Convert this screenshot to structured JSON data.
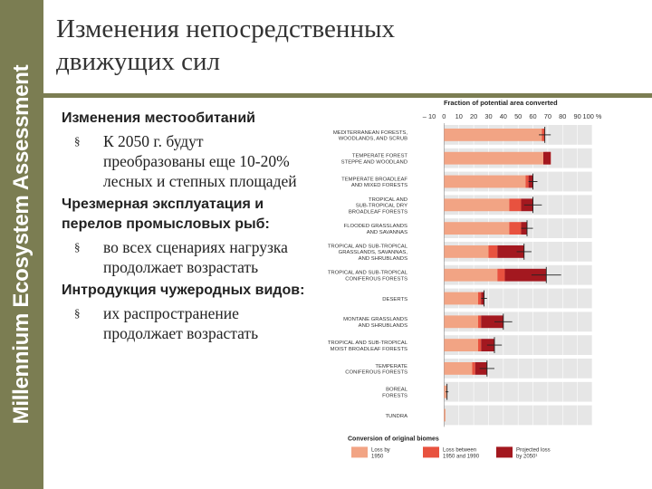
{
  "brand": "Millennium Ecosystem Assessment",
  "title_line1": "Изменения непосредственных",
  "title_line2": "движущих сил",
  "bullets": [
    {
      "head": "Изменения местообитаний",
      "items": [
        "К 2050 г. будут преобразованы еще 10-20% лесных и степных площадей"
      ]
    },
    {
      "head": "Чрезмерная эксплуатация и перелов промысловых рыб:",
      "items": [
        "во всех сценариях нагрузка продолжает возрастать"
      ]
    },
    {
      "head": "Интродукция чужеродных видов:",
      "items": [
        "их распространение продолжает возрастать"
      ]
    }
  ],
  "bullet_marker": "§",
  "colors": {
    "band": "#7b7d52",
    "before1950": "#f2a484",
    "between1950_1990": "#e8523f",
    "projected": "#a3181f",
    "row_bg": "#e6e6e6"
  },
  "chart_data": {
    "type": "bar",
    "title": "Fraction of potential area converted",
    "xlim": [
      -10,
      100
    ],
    "xticks": [
      "– 10",
      "0",
      "10",
      "20",
      "30",
      "40",
      "50",
      "60",
      "70",
      "80",
      "90",
      "100 %"
    ],
    "categories": [
      [
        "MEDITERRANEAN FORESTS,",
        "WOODLANDS, AND SCRUB"
      ],
      [
        "TEMPERATE FOREST",
        "STEPPE AND WOODLAND"
      ],
      [
        "TEMPERATE BROADLEAF",
        "AND MIXED FORESTS"
      ],
      [
        "TROPICAL AND",
        "SUB-TROPICAL DRY",
        "BROADLEAF FORESTS"
      ],
      [
        "FLOODED GRASSLANDS",
        "AND SAVANNAS"
      ],
      [
        "TROPICAL AND SUB-TROPICAL",
        "GRASSLANDS, SAVANNAS,",
        "AND SHRUBLANDS"
      ],
      [
        "TROPICAL AND SUB-TROPICAL",
        "CONIFEROUS FORESTS"
      ],
      [
        "DESERTS"
      ],
      [
        "MONTANE GRASSLANDS",
        "AND SHRUBLANDS"
      ],
      [
        "TROPICAL AND SUB-TROPICAL",
        "MOIST BROADLEAF FORESTS"
      ],
      [
        "TEMPERATE",
        "CONIFEROUS FORESTS"
      ],
      [
        "BOREAL",
        "FORESTS"
      ],
      [
        "TUNDRA"
      ]
    ],
    "series": [
      {
        "name": "Loss by 1950",
        "values": [
          66,
          68,
          55,
          44,
          44,
          30,
          36,
          23,
          23,
          23,
          19,
          2,
          1
        ]
      },
      {
        "name": "Loss between 1950 and 1990",
        "values": [
          2,
          4,
          2,
          8,
          8,
          6,
          5,
          2,
          2,
          2,
          2,
          0,
          0
        ]
      },
      {
        "name": "Projected loss by 2050",
        "values": [
          0,
          -5,
          3,
          8,
          4,
          18,
          28,
          2,
          15,
          9,
          8,
          0,
          0
        ]
      }
    ],
    "error": [
      4,
      0,
      3,
      6,
      4,
      5,
      10,
      2,
      6,
      5,
      5,
      1,
      0
    ],
    "legend_title": "Conversion of original biomes",
    "legend": [
      [
        "Loss by",
        "1950"
      ],
      [
        "Loss between",
        "1950 and 1990"
      ],
      [
        "Projected loss",
        "by 2050¹"
      ]
    ],
    "legend_position": "bottom"
  }
}
